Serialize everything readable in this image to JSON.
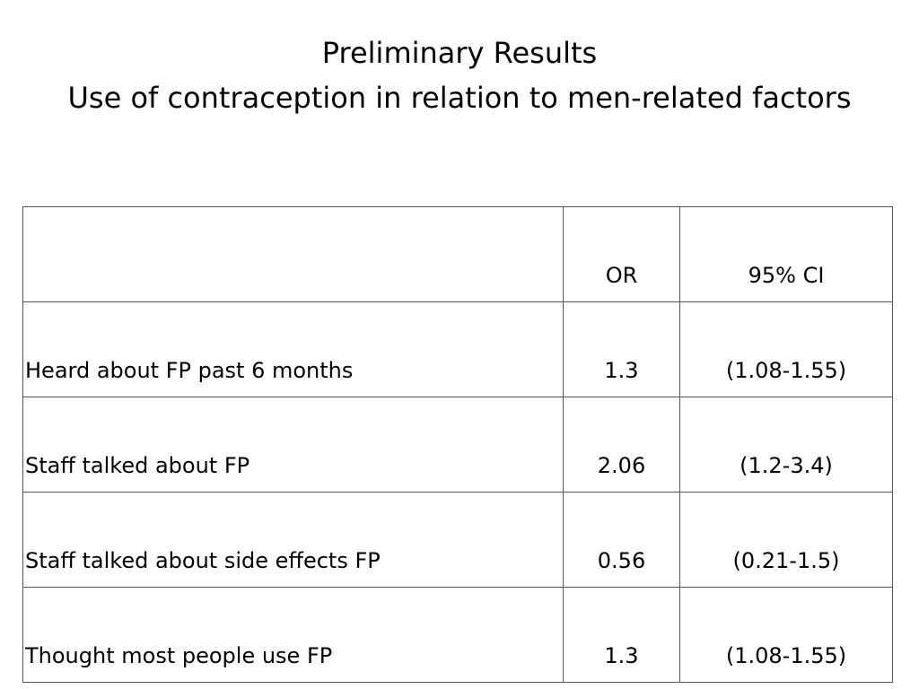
{
  "slide": {
    "title_line1": "Preliminary Results",
    "title_line2": "Use of contraception in relation to men-related factors"
  },
  "table": {
    "headers": [
      "",
      "OR",
      "95% CI"
    ],
    "rows": [
      {
        "factor": "Heard about FP past 6 months",
        "or": "1.3",
        "ci": "(1.08-1.55)"
      },
      {
        "factor": "Staff talked about FP",
        "or": "2.06",
        "ci": "(1.2-3.4)"
      },
      {
        "factor": "Staff talked about side effects FP",
        "or": "0.56",
        "ci": "(0.21-1.5)"
      },
      {
        "factor": "Thought most people use FP",
        "or": "1.3",
        "ci": "(1.08-1.55)"
      }
    ]
  }
}
